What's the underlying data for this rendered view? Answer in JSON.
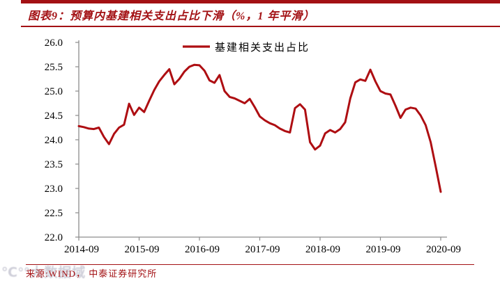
{
  "header": {
    "title": "图表9：预算内基建相关支出占比下滑（%，1 年平滑）"
  },
  "footer": {
    "source": "来源:WIND， 中泰证券研究所",
    "watermark": "℃°°大数据域"
  },
  "colors": {
    "accent_red": "#A31114",
    "line_red": "#AE0E12",
    "axis_gray": "#8c8c8c",
    "label_black": "#000000"
  },
  "chart_data": {
    "type": "line",
    "title": "预算内基建相关支出占比下滑（%，1 年平滑）",
    "legend_position": "top-center",
    "grid": "off",
    "x_start_month": "2014-09",
    "x_end_month": "2020-09",
    "x_tick_labels": [
      "2014-09",
      "2015-09",
      "2016-09",
      "2017-09",
      "2018-09",
      "2019-09",
      "2020-09"
    ],
    "x_tick_month_offsets": [
      0,
      12,
      24,
      36,
      48,
      60,
      72
    ],
    "ylim": [
      22.0,
      26.0
    ],
    "y_tick_step": 0.5,
    "y_tick_labels": [
      "26.0",
      "25.5",
      "25.0",
      "24.5",
      "24.0",
      "23.5",
      "23.0",
      "22.5",
      "22.0"
    ],
    "series": [
      {
        "name": "基建相关支出占比",
        "color": "#AE0E12",
        "values": [
          24.28,
          24.26,
          24.23,
          24.22,
          24.25,
          24.06,
          23.91,
          24.12,
          24.25,
          24.31,
          24.74,
          24.51,
          24.66,
          24.57,
          24.8,
          25.02,
          25.2,
          25.33,
          25.45,
          25.14,
          25.25,
          25.4,
          25.5,
          25.54,
          25.53,
          25.42,
          25.22,
          25.17,
          25.33,
          25.0,
          24.88,
          24.85,
          24.8,
          24.75,
          24.84,
          24.67,
          24.48,
          24.4,
          24.34,
          24.3,
          24.23,
          24.18,
          24.15,
          24.65,
          24.73,
          24.62,
          23.95,
          23.8,
          23.88,
          24.13,
          24.2,
          24.15,
          24.22,
          24.36,
          24.85,
          25.18,
          25.24,
          25.21,
          25.44,
          25.2,
          25.0,
          24.95,
          24.93,
          24.7,
          24.45,
          24.62,
          24.66,
          24.64,
          24.5,
          24.3,
          23.95,
          23.45,
          22.93
        ]
      }
    ]
  }
}
